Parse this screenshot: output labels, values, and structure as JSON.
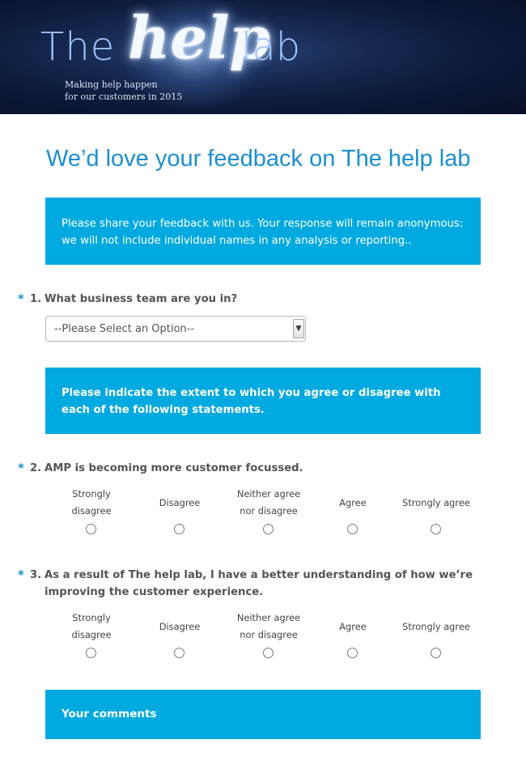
{
  "banner": {
    "logo_the": "The",
    "logo_help": "help",
    "logo_lab": "lab",
    "tagline_line1": "Making help happen",
    "tagline_line2": "for our customers in 2015"
  },
  "page": {
    "title": "We’d love your feedback on The help lab",
    "intro_text": "Please share your feedback with us. Your response will remain anonymous: we will not include individual names in any analysis or reporting..",
    "instruction_text": "Please indicate the extent to which you agree or disagree with each of the following statements.",
    "comments_heading": "Your comments"
  },
  "questions": [
    {
      "required_marker": "*",
      "number": "1.",
      "text": "What business team are you in?",
      "select": {
        "value": "--Please Select an Option--"
      }
    },
    {
      "required_marker": "*",
      "number": "2.",
      "text": "AMP is becoming more customer focussed.",
      "selected_option": null
    },
    {
      "required_marker": "*",
      "number": "3.",
      "text": "As a result of The help lab, I have a better understanding of how we’re improving the customer experience.",
      "selected_option": null
    }
  ],
  "scale_options": [
    {
      "line1": "Strongly",
      "line2": "disagree"
    },
    {
      "line1": "Disagree",
      "line2": ""
    },
    {
      "line1": "Neither agree",
      "line2": "nor disagree"
    },
    {
      "line1": "Agree",
      "line2": ""
    },
    {
      "line1": "Strongly agree",
      "line2": ""
    }
  ],
  "colors": {
    "accent_blue": "#00a9e0",
    "title_blue": "#1b8fce",
    "banner_navy": "#0b1733"
  }
}
